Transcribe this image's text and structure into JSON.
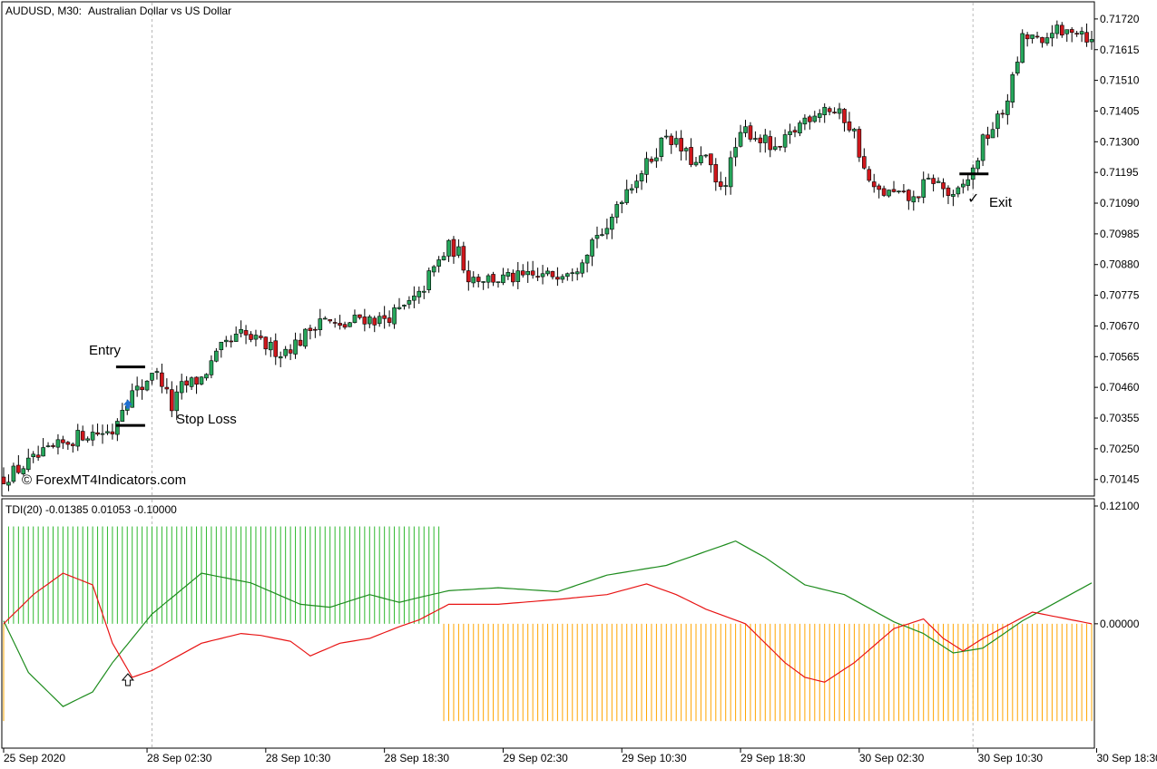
{
  "header": {
    "symbol": "AUDUSD, M30:",
    "description": "Australian Dollar vs US Dollar"
  },
  "indicator_label": "TDI(20) -0.01385 0.01053 -0.10000",
  "watermark": "© ForexMT4Indicators.com",
  "annotations": {
    "entry": "Entry",
    "stop_loss": "Stop Loss",
    "exit": "Exit"
  },
  "colors": {
    "bull": "#26a65b",
    "bear": "#d0171c",
    "green_line": "#1e8c1e",
    "red_line": "#e81414",
    "histogram_up": "#2eb82e",
    "histogram_down": "#ffa500",
    "entry_arrow": "#1f6fd0"
  },
  "chart_data": [
    {
      "type": "candlestick",
      "title": "AUDUSD, M30:  Australian Dollar vs US Dollar",
      "y_ticks": [
        "0.71720",
        "0.71615",
        "0.71510",
        "0.71405",
        "0.71300",
        "0.71195",
        "0.71090",
        "0.70985",
        "0.70880",
        "0.70775",
        "0.70670",
        "0.70565",
        "0.70460",
        "0.70355",
        "0.70250",
        "0.70145"
      ],
      "x_ticks": [
        "25 Sep 2020",
        "28 Sep 02:30",
        "28 Sep 10:30",
        "28 Sep 18:30",
        "29 Sep 02:30",
        "29 Sep 10:30",
        "29 Sep 18:30",
        "30 Sep 02:30",
        "30 Sep 10:30",
        "30 Sep 18:30"
      ],
      "ylim": [
        0.7011,
        0.7176
      ],
      "close_path": [
        [
          0,
          0.7015
        ],
        [
          8,
          0.7023
        ],
        [
          16,
          0.703
        ],
        [
          22,
          0.7031
        ],
        [
          24,
          0.704
        ],
        [
          26,
          0.7044
        ],
        [
          28,
          0.7046
        ],
        [
          30,
          0.7052
        ],
        [
          32,
          0.7048
        ],
        [
          34,
          0.7039
        ],
        [
          36,
          0.7046
        ],
        [
          40,
          0.7049
        ],
        [
          44,
          0.7059
        ],
        [
          48,
          0.7064
        ],
        [
          56,
          0.7058
        ],
        [
          60,
          0.7062
        ],
        [
          64,
          0.707
        ],
        [
          68,
          0.7066
        ],
        [
          72,
          0.707
        ],
        [
          76,
          0.7069
        ],
        [
          80,
          0.7072
        ],
        [
          84,
          0.7077
        ],
        [
          86,
          0.7084
        ],
        [
          90,
          0.7094
        ],
        [
          92,
          0.7092
        ],
        [
          94,
          0.7084
        ],
        [
          100,
          0.7083
        ],
        [
          110,
          0.7084
        ],
        [
          116,
          0.7088
        ],
        [
          120,
          0.7099
        ],
        [
          122,
          0.7098
        ],
        [
          124,
          0.7109
        ],
        [
          126,
          0.7114
        ],
        [
          130,
          0.7122
        ],
        [
          132,
          0.7127
        ],
        [
          134,
          0.7133
        ],
        [
          136,
          0.7129
        ],
        [
          140,
          0.7122
        ],
        [
          142,
          0.7125
        ],
        [
          144,
          0.7115
        ],
        [
          146,
          0.7117
        ],
        [
          148,
          0.7128
        ],
        [
          150,
          0.7134
        ],
        [
          154,
          0.713
        ],
        [
          156,
          0.7126
        ],
        [
          158,
          0.713
        ],
        [
          162,
          0.7138
        ],
        [
          166,
          0.7142
        ],
        [
          170,
          0.7138
        ],
        [
          172,
          0.7133
        ],
        [
          174,
          0.712
        ],
        [
          176,
          0.7113
        ],
        [
          180,
          0.7112
        ],
        [
          184,
          0.711
        ],
        [
          186,
          0.7115
        ],
        [
          188,
          0.7117
        ],
        [
          190,
          0.7114
        ],
        [
          192,
          0.711
        ],
        [
          194,
          0.7115
        ],
        [
          196,
          0.712
        ],
        [
          198,
          0.713
        ],
        [
          200,
          0.7135
        ],
        [
          202,
          0.714
        ],
        [
          204,
          0.7151
        ],
        [
          206,
          0.7165
        ],
        [
          208,
          0.7166
        ],
        [
          210,
          0.7162
        ],
        [
          212,
          0.7169
        ],
        [
          214,
          0.7166
        ],
        [
          216,
          0.7169
        ],
        [
          218,
          0.7168
        ],
        [
          220,
          0.7164
        ]
      ],
      "wick_range": 0.00035,
      "entry_price": 0.7053,
      "stop_loss_price": 0.7033,
      "exit_price": 0.7119,
      "entry_bar": 22,
      "exit_bar": 194
    },
    {
      "type": "line",
      "title": "TDI(20) -0.01385 0.01053 -0.10000",
      "y_ticks": [
        "0.12100",
        "0.00000"
      ],
      "ylim": [
        -0.125,
        0.121
      ],
      "bars": 221,
      "series": [
        {
          "name": "",
          "color": "#1e8c1e",
          "points": [
            [
              0,
              0.003
            ],
            [
              5,
              -0.05
            ],
            [
              12,
              -0.085
            ],
            [
              18,
              -0.07
            ],
            [
              22,
              -0.04
            ],
            [
              30,
              0.01
            ],
            [
              40,
              0.052
            ],
            [
              50,
              0.042
            ],
            [
              60,
              0.02
            ],
            [
              66,
              0.017
            ],
            [
              74,
              0.03
            ],
            [
              80,
              0.022
            ],
            [
              84,
              0.027
            ],
            [
              90,
              0.034
            ],
            [
              100,
              0.037
            ],
            [
              112,
              0.033
            ],
            [
              122,
              0.05
            ],
            [
              134,
              0.06
            ],
            [
              148,
              0.085
            ],
            [
              154,
              0.068
            ],
            [
              162,
              0.04
            ],
            [
              170,
              0.03
            ],
            [
              180,
              0.002
            ],
            [
              186,
              -0.01
            ],
            [
              192,
              -0.03
            ],
            [
              198,
              -0.025
            ],
            [
              206,
              0.003
            ],
            [
              220,
              0.042
            ]
          ]
        },
        {
          "name": "",
          "color": "#e81414",
          "points": [
            [
              0,
              0.0
            ],
            [
              6,
              0.03
            ],
            [
              12,
              0.052
            ],
            [
              18,
              0.04
            ],
            [
              22,
              -0.02
            ],
            [
              26,
              -0.055
            ],
            [
              30,
              -0.048
            ],
            [
              40,
              -0.02
            ],
            [
              48,
              -0.01
            ],
            [
              52,
              -0.012
            ],
            [
              58,
              -0.018
            ],
            [
              62,
              -0.033
            ],
            [
              68,
              -0.02
            ],
            [
              74,
              -0.015
            ],
            [
              80,
              -0.003
            ],
            [
              84,
              0.004
            ],
            [
              90,
              0.02
            ],
            [
              100,
              0.02
            ],
            [
              112,
              0.025
            ],
            [
              122,
              0.03
            ],
            [
              130,
              0.041
            ],
            [
              136,
              0.03
            ],
            [
              142,
              0.015
            ],
            [
              150,
              0.0
            ],
            [
              158,
              -0.04
            ],
            [
              162,
              -0.055
            ],
            [
              166,
              -0.06
            ],
            [
              172,
              -0.04
            ],
            [
              180,
              -0.005
            ],
            [
              186,
              0.005
            ],
            [
              190,
              -0.015
            ],
            [
              194,
              -0.028
            ],
            [
              198,
              -0.015
            ],
            [
              208,
              0.012
            ],
            [
              220,
              0.0
            ]
          ]
        }
      ],
      "histogram": [
        {
          "from_bar": 0,
          "to_bar": 0,
          "value": -0.1
        },
        {
          "from_bar": 1,
          "to_bar": 88,
          "value": 0.1
        },
        {
          "from_bar": 89,
          "to_bar": 220,
          "value": -0.1
        }
      ]
    }
  ]
}
